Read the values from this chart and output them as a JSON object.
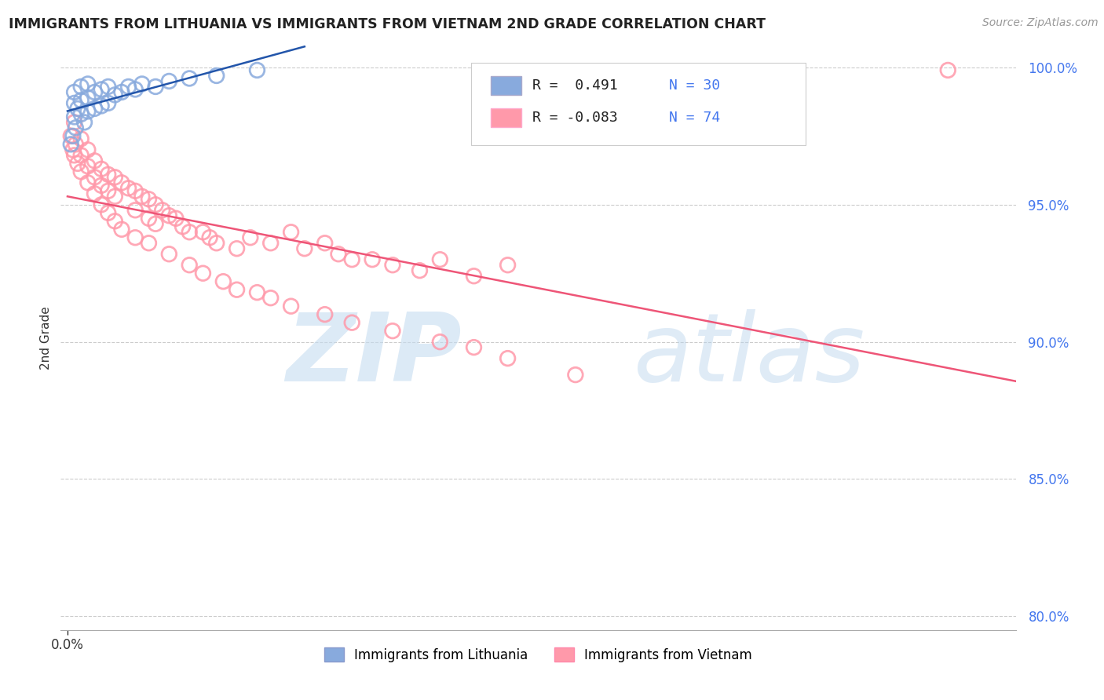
{
  "title": "IMMIGRANTS FROM LITHUANIA VS IMMIGRANTS FROM VIETNAM 2ND GRADE CORRELATION CHART",
  "source": "Source: ZipAtlas.com",
  "ylabel": "2nd Grade",
  "xlim": [
    -0.001,
    0.14
  ],
  "ylim": [
    0.795,
    1.008
  ],
  "yticks": [
    0.8,
    0.85,
    0.9,
    0.95,
    1.0
  ],
  "ytick_labels": [
    "80.0%",
    "85.0%",
    "90.0%",
    "95.0%",
    "100.0%"
  ],
  "xtick_val": 0.0,
  "xtick_label": "0.0%",
  "color_blue": "#88AADD",
  "color_pink": "#FF99AA",
  "trend_blue": "#2255AA",
  "trend_pink": "#EE5577",
  "background": "#FFFFFF",
  "title_color": "#222222",
  "tick_color_right": "#4477EE",
  "grid_color": "#CCCCCC",
  "series1_label": "Immigrants from Lithuania",
  "series2_label": "Immigrants from Vietnam",
  "legend_r1": "R =  0.491",
  "legend_n1": "N = 30",
  "legend_r2": "R = -0.083",
  "legend_n2": "N = 74",
  "lithuania_x": [
    0.0005,
    0.0008,
    0.001,
    0.001,
    0.001,
    0.0012,
    0.0015,
    0.002,
    0.002,
    0.002,
    0.0025,
    0.003,
    0.003,
    0.003,
    0.004,
    0.004,
    0.005,
    0.005,
    0.006,
    0.006,
    0.007,
    0.008,
    0.009,
    0.01,
    0.011,
    0.013,
    0.015,
    0.018,
    0.022,
    0.028
  ],
  "lithuania_y": [
    0.972,
    0.975,
    0.982,
    0.987,
    0.991,
    0.978,
    0.985,
    0.983,
    0.988,
    0.993,
    0.98,
    0.984,
    0.989,
    0.994,
    0.985,
    0.991,
    0.986,
    0.992,
    0.987,
    0.993,
    0.99,
    0.991,
    0.993,
    0.992,
    0.994,
    0.993,
    0.995,
    0.996,
    0.997,
    0.999
  ],
  "vietnam_x": [
    0.0005,
    0.0008,
    0.001,
    0.001,
    0.0012,
    0.0015,
    0.002,
    0.002,
    0.002,
    0.003,
    0.003,
    0.003,
    0.004,
    0.004,
    0.005,
    0.005,
    0.006,
    0.006,
    0.007,
    0.007,
    0.008,
    0.009,
    0.01,
    0.01,
    0.011,
    0.012,
    0.012,
    0.013,
    0.013,
    0.014,
    0.015,
    0.016,
    0.017,
    0.018,
    0.02,
    0.021,
    0.022,
    0.025,
    0.027,
    0.03,
    0.033,
    0.035,
    0.038,
    0.04,
    0.042,
    0.045,
    0.048,
    0.052,
    0.055,
    0.06,
    0.065,
    0.004,
    0.005,
    0.006,
    0.007,
    0.008,
    0.01,
    0.012,
    0.015,
    0.018,
    0.02,
    0.023,
    0.025,
    0.028,
    0.03,
    0.033,
    0.038,
    0.042,
    0.048,
    0.055,
    0.06,
    0.065,
    0.075,
    0.13
  ],
  "vietnam_y": [
    0.975,
    0.97,
    0.968,
    0.98,
    0.972,
    0.965,
    0.974,
    0.968,
    0.962,
    0.97,
    0.964,
    0.958,
    0.966,
    0.96,
    0.963,
    0.957,
    0.961,
    0.955,
    0.96,
    0.953,
    0.958,
    0.956,
    0.955,
    0.948,
    0.953,
    0.952,
    0.945,
    0.95,
    0.943,
    0.948,
    0.946,
    0.945,
    0.942,
    0.94,
    0.94,
    0.938,
    0.936,
    0.934,
    0.938,
    0.936,
    0.94,
    0.934,
    0.936,
    0.932,
    0.93,
    0.93,
    0.928,
    0.926,
    0.93,
    0.924,
    0.928,
    0.954,
    0.95,
    0.947,
    0.944,
    0.941,
    0.938,
    0.936,
    0.932,
    0.928,
    0.925,
    0.922,
    0.919,
    0.918,
    0.916,
    0.913,
    0.91,
    0.907,
    0.904,
    0.9,
    0.898,
    0.894,
    0.888,
    0.999
  ]
}
